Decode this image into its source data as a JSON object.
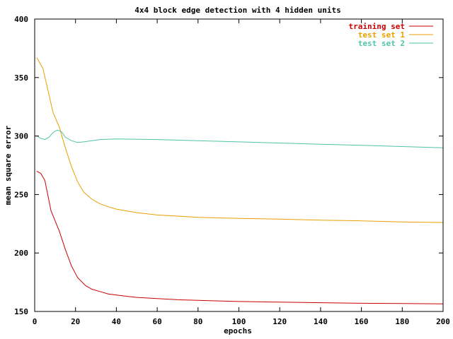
{
  "chart_data": {
    "type": "line",
    "title": "4x4 block edge detection with 4 hidden units",
    "xlabel": "epochs",
    "ylabel": "mean square error",
    "xlim": [
      0,
      200
    ],
    "ylim": [
      150,
      400
    ],
    "xticks": [
      0,
      20,
      40,
      60,
      80,
      100,
      120,
      140,
      160,
      180,
      200
    ],
    "yticks": [
      150,
      200,
      250,
      300,
      350,
      400
    ],
    "grid": false,
    "legend_position": "top-right",
    "series": [
      {
        "name": "training set",
        "color": "#cc0000",
        "x": [
          1,
          3,
          5,
          8,
          12,
          15,
          18,
          21,
          25,
          28,
          32,
          36,
          40,
          45,
          50,
          60,
          70,
          80,
          90,
          100,
          120,
          140,
          160,
          180,
          200
        ],
        "y": [
          270,
          268,
          262,
          236,
          219,
          203,
          189,
          179,
          172,
          169,
          167,
          165,
          164,
          163,
          162,
          161,
          160,
          159.5,
          159,
          158.5,
          158,
          157.5,
          157,
          156.8,
          156.5
        ]
      },
      {
        "name": "test set 1",
        "color": "#e8a000",
        "x": [
          1,
          4,
          6,
          9,
          12,
          15,
          18,
          21,
          24,
          28,
          32,
          36,
          40,
          45,
          50,
          60,
          70,
          80,
          90,
          100,
          120,
          140,
          160,
          180,
          200
        ],
        "y": [
          367,
          358,
          343,
          320,
          308,
          290,
          274,
          261,
          252,
          246,
          242,
          239.5,
          237.5,
          236,
          234.5,
          232.5,
          231.5,
          230.5,
          230,
          229.5,
          229,
          228,
          227.5,
          226.5,
          226
        ]
      },
      {
        "name": "test set 2",
        "color": "#4ec4a8",
        "x": [
          1,
          3,
          5,
          7,
          9,
          11,
          13,
          15,
          18,
          21,
          24,
          28,
          32,
          40,
          60,
          80,
          100,
          120,
          140,
          160,
          180,
          200
        ],
        "y": [
          300,
          298,
          297,
          299,
          303,
          305,
          304,
          299,
          296,
          294.5,
          295,
          296,
          297,
          297.5,
          297,
          296,
          295,
          294,
          293,
          292,
          291,
          290
        ]
      }
    ]
  }
}
